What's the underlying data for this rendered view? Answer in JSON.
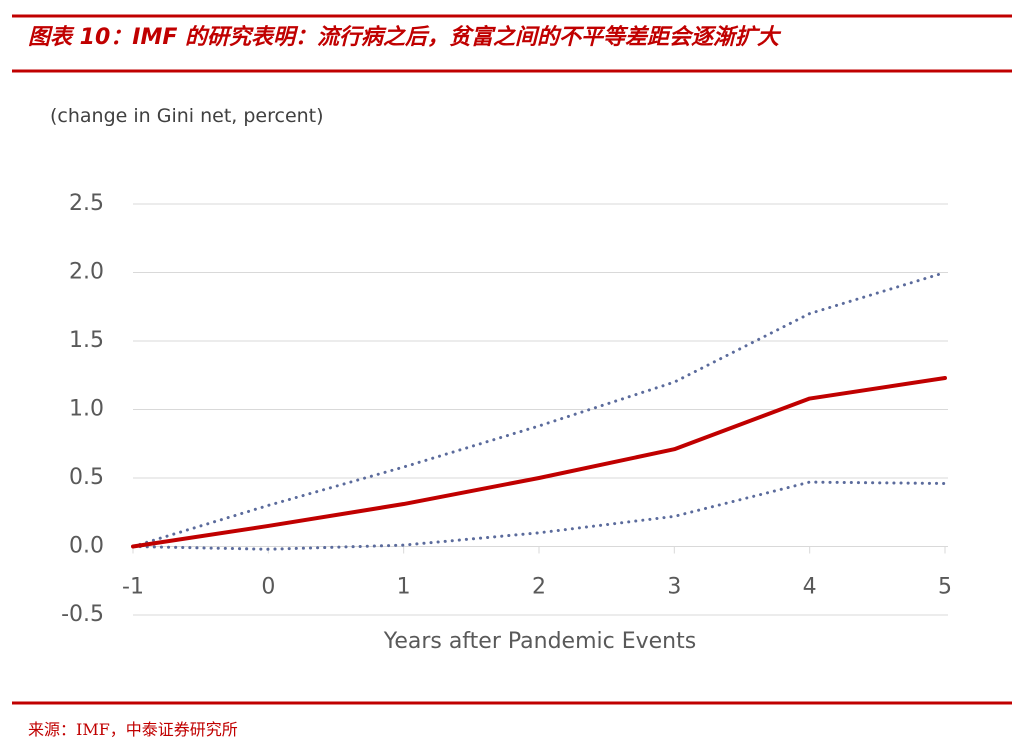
{
  "chart_data": {
    "type": "line",
    "title": "图表 10：IMF 的研究表明：流行病之后，贫富之间的不平等差距会逐渐扩大",
    "y_label": "(change in Gini net, percent)",
    "x_label": "Years after Pandemic Events",
    "source": "来源：IMF，中泰证券研究所",
    "x": [
      -1,
      0,
      1,
      2,
      3,
      4,
      5
    ],
    "xlim": [
      -1,
      5
    ],
    "xticks": [
      -1,
      0,
      1,
      2,
      3,
      4,
      5
    ],
    "ylim": [
      -0.5,
      2.5
    ],
    "yticks": [
      {
        "value": 2.5,
        "label": "2.5"
      },
      {
        "value": 2,
        "label": "2.0"
      },
      {
        "value": 1.5,
        "label": "1.5"
      },
      {
        "value": 1,
        "label": "1.0"
      },
      {
        "value": 0.5,
        "label": "0.5"
      },
      {
        "value": 0,
        "label": "0.0"
      },
      {
        "value": -0.5,
        "label": "-0.5"
      }
    ],
    "grid": true,
    "series": [
      {
        "color": "#5b6b9c",
        "style": "dotted",
        "values": [
          0,
          0.3,
          0.58,
          0.88,
          1.2,
          1.7,
          2.0
        ]
      },
      {
        "color": "#5b6b9c",
        "style": "dotted",
        "values": [
          0,
          -0.02,
          0.01,
          0.1,
          0.22,
          0.47,
          0.46
        ]
      },
      {
        "color": "#c00000",
        "style": "solid",
        "values": [
          0,
          0.15,
          0.31,
          0.5,
          0.71,
          1.08,
          1.23
        ]
      }
    ]
  }
}
